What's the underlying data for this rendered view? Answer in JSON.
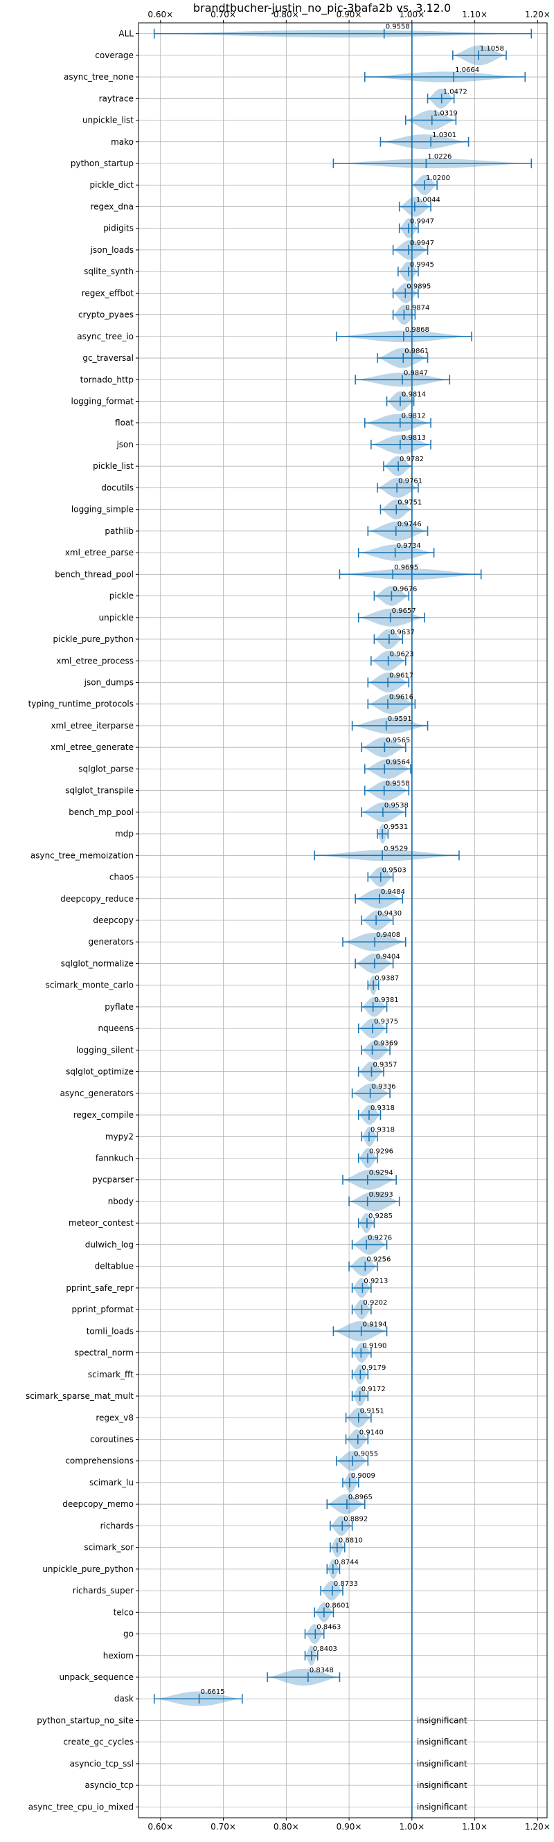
{
  "colors": {
    "accent": "#1f77b4",
    "violin_fill": "#1f77b4",
    "grid": "#b0b0b0",
    "axis": "#000000",
    "text": "#000000"
  },
  "chart_data": {
    "type": "violin",
    "title": "brandtbucher-justin_no_pic-3bafa2b vs. 3.12.0",
    "xlabel": "",
    "ylabel": "",
    "xlim": [
      0.565,
      1.215
    ],
    "reference_line": 1.0,
    "grid": true,
    "x_ticks": [
      0.6,
      0.7,
      0.8,
      0.9,
      1.0,
      1.1,
      1.2
    ],
    "x_tick_labels": [
      "0.60×",
      "0.70×",
      "0.80×",
      "0.90×",
      "1.00×",
      "1.10×",
      "1.20×"
    ],
    "insignificant_label": "insignificant",
    "benchmarks": [
      {
        "name": "ALL",
        "mean": 0.9558,
        "label": "0.9558",
        "min": 0.59,
        "max": 1.19
      },
      {
        "name": "coverage",
        "mean": 1.1058,
        "label": "1.1058",
        "min": 1.065,
        "max": 1.15
      },
      {
        "name": "async_tree_none",
        "mean": 1.0664,
        "label": "1.0664",
        "min": 0.925,
        "max": 1.18
      },
      {
        "name": "raytrace",
        "mean": 1.0472,
        "label": "1.0472",
        "min": 1.025,
        "max": 1.067
      },
      {
        "name": "unpickle_list",
        "mean": 1.0319,
        "label": "1.0319",
        "min": 0.99,
        "max": 1.07
      },
      {
        "name": "mako",
        "mean": 1.0301,
        "label": "1.0301",
        "min": 0.95,
        "max": 1.09
      },
      {
        "name": "python_startup",
        "mean": 1.0226,
        "label": "1.0226",
        "min": 0.875,
        "max": 1.19
      },
      {
        "name": "pickle_dict",
        "mean": 1.02,
        "label": "1.0200",
        "min": 1.0,
        "max": 1.04
      },
      {
        "name": "regex_dna",
        "mean": 1.0044,
        "label": "1.0044",
        "min": 0.98,
        "max": 1.03
      },
      {
        "name": "pidigits",
        "mean": 0.9947,
        "label": "0.9947",
        "min": 0.98,
        "max": 1.01
      },
      {
        "name": "json_loads",
        "mean": 0.9947,
        "label": "0.9947",
        "min": 0.97,
        "max": 1.025
      },
      {
        "name": "sqlite_synth",
        "mean": 0.9945,
        "label": "0.9945",
        "min": 0.978,
        "max": 1.01
      },
      {
        "name": "regex_effbot",
        "mean": 0.9895,
        "label": "0.9895",
        "min": 0.97,
        "max": 1.01
      },
      {
        "name": "crypto_pyaes",
        "mean": 0.9874,
        "label": "0.9874",
        "min": 0.97,
        "max": 1.005
      },
      {
        "name": "async_tree_io",
        "mean": 0.9868,
        "label": "0.9868",
        "min": 0.88,
        "max": 1.095
      },
      {
        "name": "gc_traversal",
        "mean": 0.9861,
        "label": "0.9861",
        "min": 0.945,
        "max": 1.025
      },
      {
        "name": "tornado_http",
        "mean": 0.9847,
        "label": "0.9847",
        "min": 0.91,
        "max": 1.06
      },
      {
        "name": "logging_format",
        "mean": 0.9814,
        "label": "0.9814",
        "min": 0.96,
        "max": 1.003
      },
      {
        "name": "float",
        "mean": 0.9812,
        "label": "0.9812",
        "min": 0.925,
        "max": 1.03
      },
      {
        "name": "json",
        "mean": 0.9813,
        "label": "0.9813",
        "min": 0.935,
        "max": 1.03
      },
      {
        "name": "pickle_list",
        "mean": 0.9782,
        "label": "0.9782",
        "min": 0.955,
        "max": 1.0
      },
      {
        "name": "docutils",
        "mean": 0.9761,
        "label": "0.9761",
        "min": 0.945,
        "max": 1.01
      },
      {
        "name": "logging_simple",
        "mean": 0.9751,
        "label": "0.9751",
        "min": 0.95,
        "max": 1.0
      },
      {
        "name": "pathlib",
        "mean": 0.9746,
        "label": "0.9746",
        "min": 0.93,
        "max": 1.025
      },
      {
        "name": "xml_etree_parse",
        "mean": 0.9734,
        "label": "0.9734",
        "min": 0.915,
        "max": 1.035
      },
      {
        "name": "bench_thread_pool",
        "mean": 0.9695,
        "label": "0.9695",
        "min": 0.885,
        "max": 1.11
      },
      {
        "name": "pickle",
        "mean": 0.9676,
        "label": "0.9676",
        "min": 0.94,
        "max": 0.995
      },
      {
        "name": "unpickle",
        "mean": 0.9657,
        "label": "0.9657",
        "min": 0.915,
        "max": 1.02
      },
      {
        "name": "pickle_pure_python",
        "mean": 0.9637,
        "label": "0.9637",
        "min": 0.94,
        "max": 0.985
      },
      {
        "name": "xml_etree_process",
        "mean": 0.9623,
        "label": "0.9623",
        "min": 0.935,
        "max": 0.99
      },
      {
        "name": "json_dumps",
        "mean": 0.9617,
        "label": "0.9617",
        "min": 0.93,
        "max": 0.995
      },
      {
        "name": "typing_runtime_protocols",
        "mean": 0.9616,
        "label": "0.9616",
        "min": 0.93,
        "max": 1.005
      },
      {
        "name": "xml_etree_iterparse",
        "mean": 0.9591,
        "label": "0.9591",
        "min": 0.905,
        "max": 1.025
      },
      {
        "name": "xml_etree_generate",
        "mean": 0.9565,
        "label": "0.9565",
        "min": 0.92,
        "max": 0.99
      },
      {
        "name": "sqlglot_parse",
        "mean": 0.9564,
        "label": "0.9564",
        "min": 0.925,
        "max": 0.998
      },
      {
        "name": "sqlglot_transpile",
        "mean": 0.9558,
        "label": "0.9558",
        "min": 0.925,
        "max": 0.995
      },
      {
        "name": "bench_mp_pool",
        "mean": 0.9538,
        "label": "0.9538",
        "min": 0.92,
        "max": 0.99
      },
      {
        "name": "mdp",
        "mean": 0.9531,
        "label": "0.9531",
        "min": 0.945,
        "max": 0.962
      },
      {
        "name": "async_tree_memoization",
        "mean": 0.9529,
        "label": "0.9529",
        "min": 0.845,
        "max": 1.075
      },
      {
        "name": "chaos",
        "mean": 0.9503,
        "label": "0.9503",
        "min": 0.93,
        "max": 0.97
      },
      {
        "name": "deepcopy_reduce",
        "mean": 0.9484,
        "label": "0.9484",
        "min": 0.91,
        "max": 0.985
      },
      {
        "name": "deepcopy",
        "mean": 0.943,
        "label": "0.9430",
        "min": 0.92,
        "max": 0.97
      },
      {
        "name": "generators",
        "mean": 0.9408,
        "label": "0.9408",
        "min": 0.89,
        "max": 0.99
      },
      {
        "name": "sqlglot_normalize",
        "mean": 0.9404,
        "label": "0.9404",
        "min": 0.91,
        "max": 0.97
      },
      {
        "name": "scimark_monte_carlo",
        "mean": 0.9387,
        "label": "0.9387",
        "min": 0.93,
        "max": 0.947
      },
      {
        "name": "pyflate",
        "mean": 0.9381,
        "label": "0.9381",
        "min": 0.92,
        "max": 0.96
      },
      {
        "name": "nqueens",
        "mean": 0.9375,
        "label": "0.9375",
        "min": 0.915,
        "max": 0.96
      },
      {
        "name": "logging_silent",
        "mean": 0.9369,
        "label": "0.9369",
        "min": 0.92,
        "max": 0.965
      },
      {
        "name": "sqlglot_optimize",
        "mean": 0.9357,
        "label": "0.9357",
        "min": 0.915,
        "max": 0.955
      },
      {
        "name": "async_generators",
        "mean": 0.9336,
        "label": "0.9336",
        "min": 0.905,
        "max": 0.965
      },
      {
        "name": "regex_compile",
        "mean": 0.9318,
        "label": "0.9318",
        "min": 0.915,
        "max": 0.95
      },
      {
        "name": "mypy2",
        "mean": 0.9318,
        "label": "0.9318",
        "min": 0.92,
        "max": 0.945
      },
      {
        "name": "fannkuch",
        "mean": 0.9296,
        "label": "0.9296",
        "min": 0.915,
        "max": 0.945
      },
      {
        "name": "pycparser",
        "mean": 0.9294,
        "label": "0.9294",
        "min": 0.89,
        "max": 0.975
      },
      {
        "name": "nbody",
        "mean": 0.9293,
        "label": "0.9293",
        "min": 0.9,
        "max": 0.98
      },
      {
        "name": "meteor_contest",
        "mean": 0.9285,
        "label": "0.9285",
        "min": 0.915,
        "max": 0.94
      },
      {
        "name": "dulwich_log",
        "mean": 0.9276,
        "label": "0.9276",
        "min": 0.905,
        "max": 0.96
      },
      {
        "name": "deltablue",
        "mean": 0.9256,
        "label": "0.9256",
        "min": 0.9,
        "max": 0.945
      },
      {
        "name": "pprint_safe_repr",
        "mean": 0.9213,
        "label": "0.9213",
        "min": 0.905,
        "max": 0.935
      },
      {
        "name": "pprint_pformat",
        "mean": 0.9202,
        "label": "0.9202",
        "min": 0.905,
        "max": 0.935
      },
      {
        "name": "tomli_loads",
        "mean": 0.9194,
        "label": "0.9194",
        "min": 0.875,
        "max": 0.96
      },
      {
        "name": "spectral_norm",
        "mean": 0.919,
        "label": "0.9190",
        "min": 0.905,
        "max": 0.935
      },
      {
        "name": "scimark_fft",
        "mean": 0.9179,
        "label": "0.9179",
        "min": 0.905,
        "max": 0.93
      },
      {
        "name": "scimark_sparse_mat_mult",
        "mean": 0.9172,
        "label": "0.9172",
        "min": 0.905,
        "max": 0.93
      },
      {
        "name": "regex_v8",
        "mean": 0.9151,
        "label": "0.9151",
        "min": 0.895,
        "max": 0.935
      },
      {
        "name": "coroutines",
        "mean": 0.914,
        "label": "0.9140",
        "min": 0.895,
        "max": 0.93
      },
      {
        "name": "comprehensions",
        "mean": 0.9055,
        "label": "0.9055",
        "min": 0.88,
        "max": 0.93
      },
      {
        "name": "scimark_lu",
        "mean": 0.9009,
        "label": "0.9009",
        "min": 0.89,
        "max": 0.915
      },
      {
        "name": "deepcopy_memo",
        "mean": 0.8965,
        "label": "0.8965",
        "min": 0.865,
        "max": 0.925
      },
      {
        "name": "richards",
        "mean": 0.8892,
        "label": "0.8892",
        "min": 0.87,
        "max": 0.905
      },
      {
        "name": "scimark_sor",
        "mean": 0.881,
        "label": "0.8810",
        "min": 0.87,
        "max": 0.893
      },
      {
        "name": "unpickle_pure_python",
        "mean": 0.8744,
        "label": "0.8744",
        "min": 0.865,
        "max": 0.885
      },
      {
        "name": "richards_super",
        "mean": 0.8733,
        "label": "0.8733",
        "min": 0.855,
        "max": 0.89
      },
      {
        "name": "telco",
        "mean": 0.8601,
        "label": "0.8601",
        "min": 0.845,
        "max": 0.875
      },
      {
        "name": "go",
        "mean": 0.8463,
        "label": "0.8463",
        "min": 0.83,
        "max": 0.86
      },
      {
        "name": "hexiom",
        "mean": 0.8403,
        "label": "0.8403",
        "min": 0.83,
        "max": 0.85
      },
      {
        "name": "unpack_sequence",
        "mean": 0.8348,
        "label": "0.8348",
        "min": 0.77,
        "max": 0.885
      },
      {
        "name": "dask",
        "mean": 0.6615,
        "label": "0.6615",
        "min": 0.59,
        "max": 0.73
      },
      {
        "name": "python_startup_no_site",
        "insignificant": true
      },
      {
        "name": "create_gc_cycles",
        "insignificant": true
      },
      {
        "name": "asyncio_tcp_ssl",
        "insignificant": true
      },
      {
        "name": "asyncio_tcp",
        "insignificant": true
      },
      {
        "name": "async_tree_cpu_io_mixed",
        "insignificant": true
      }
    ]
  }
}
